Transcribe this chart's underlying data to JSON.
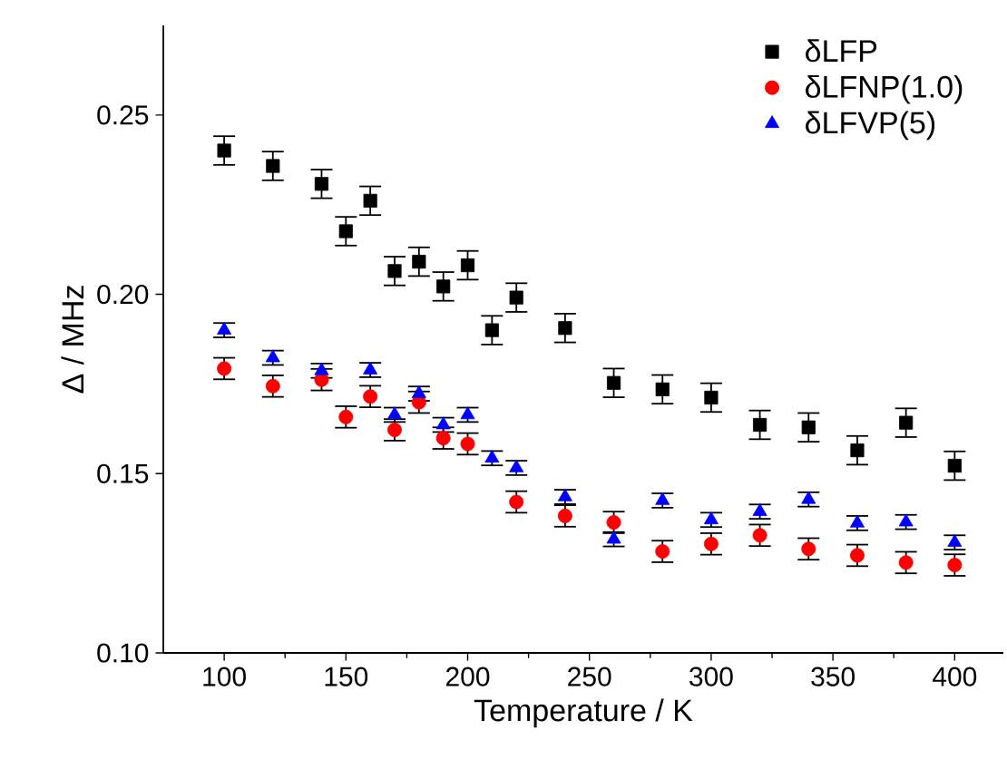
{
  "chart_data": {
    "type": "scatter",
    "xlabel": "Temperature / K",
    "ylabel": "Δ / MHz",
    "xlim": [
      75,
      420
    ],
    "ylim": [
      0.1,
      0.275
    ],
    "xticks": [
      100,
      150,
      200,
      250,
      300,
      350,
      400
    ],
    "yticks": [
      {
        "value": 0.1,
        "label": "0.10"
      },
      {
        "value": 0.15,
        "label": "0.15"
      },
      {
        "value": 0.2,
        "label": "0.20"
      },
      {
        "value": 0.25,
        "label": "0.25"
      }
    ],
    "legend": "top right",
    "grid": false,
    "series": [
      {
        "name": "δLFP",
        "color": "#000000",
        "marker": "square",
        "x": [
          100,
          120,
          140,
          150,
          160,
          170,
          180,
          190,
          200,
          210,
          220,
          240,
          260,
          280,
          300,
          320,
          340,
          360,
          380,
          400
        ],
        "values": [
          0.2401,
          0.2358,
          0.2308,
          0.2176,
          0.2261,
          0.2065,
          0.2091,
          0.2022,
          0.2081,
          0.19,
          0.1991,
          0.1906,
          0.1753,
          0.1735,
          0.1712,
          0.1636,
          0.1629,
          0.1565,
          0.1642,
          0.1522
        ],
        "errors": [
          0.004,
          0.004,
          0.004,
          0.004,
          0.004,
          0.004,
          0.004,
          0.004,
          0.004,
          0.004,
          0.004,
          0.004,
          0.004,
          0.004,
          0.004,
          0.004,
          0.004,
          0.004,
          0.004,
          0.004
        ]
      },
      {
        "name": "δLFNP(1.0)",
        "color": "#ff0000",
        "marker": "circle",
        "x": [
          100,
          120,
          140,
          150,
          160,
          170,
          180,
          190,
          200,
          220,
          240,
          260,
          280,
          300,
          320,
          340,
          360,
          380,
          400
        ],
        "values": [
          0.1793,
          0.1744,
          0.1762,
          0.1658,
          0.1715,
          0.1622,
          0.1699,
          0.1599,
          0.1583,
          0.1421,
          0.1382,
          0.1364,
          0.1283,
          0.1304,
          0.1328,
          0.129,
          0.1272,
          0.1252,
          0.1245
        ],
        "errors": [
          0.003,
          0.003,
          0.003,
          0.003,
          0.003,
          0.003,
          0.003,
          0.003,
          0.003,
          0.003,
          0.003,
          0.003,
          0.003,
          0.003,
          0.003,
          0.003,
          0.003,
          0.003,
          0.003
        ]
      },
      {
        "name": "δLFVP(5)",
        "color": "#0000ff",
        "marker": "triangle",
        "x": [
          100,
          120,
          140,
          160,
          170,
          180,
          190,
          200,
          210,
          220,
          240,
          260,
          280,
          300,
          320,
          340,
          360,
          380,
          400
        ],
        "values": [
          0.19,
          0.1823,
          0.1787,
          0.1789,
          0.1664,
          0.1723,
          0.1636,
          0.1664,
          0.1543,
          0.1516,
          0.1435,
          0.1317,
          0.1425,
          0.1371,
          0.1394,
          0.1428,
          0.1362,
          0.1365,
          0.1308
        ],
        "errors": [
          0.002,
          0.002,
          0.002,
          0.002,
          0.002,
          0.002,
          0.002,
          0.002,
          0.002,
          0.002,
          0.002,
          0.002,
          0.002,
          0.002,
          0.002,
          0.002,
          0.002,
          0.002,
          0.002
        ]
      }
    ]
  }
}
